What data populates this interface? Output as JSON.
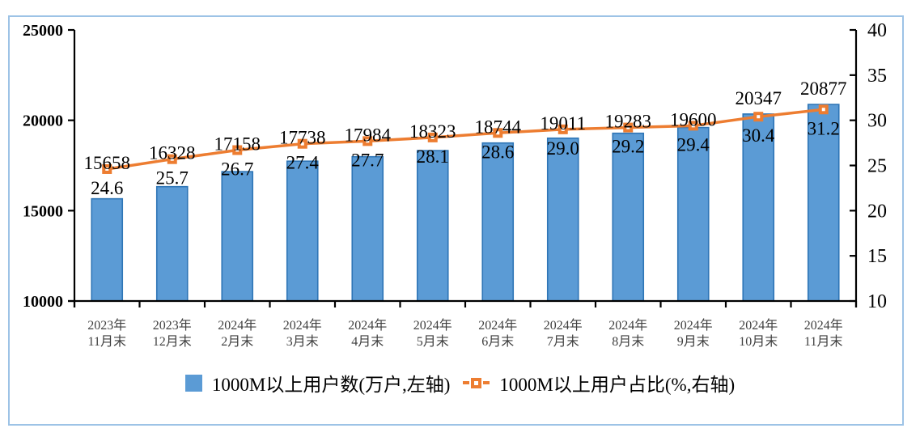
{
  "chart_data": {
    "type": "bar+line combo",
    "title": "",
    "categories": [
      "2023年11月末",
      "2023年12月末",
      "2024年2月末",
      "2024年3月末",
      "2024年4月末",
      "2024年5月末",
      "2024年6月末",
      "2024年7月末",
      "2024年8月末",
      "2024年9月末",
      "2024年10月末",
      "2024年11月末"
    ],
    "series": [
      {
        "name": "1000M以上用户数(万户,左轴)",
        "type": "bar",
        "axis": "left",
        "values": [
          15658,
          16328,
          17158,
          17738,
          17984,
          18323,
          18744,
          19011,
          19283,
          19600,
          20347,
          20877
        ],
        "labels": [
          "15658",
          "16328",
          "17158",
          "17738",
          "17984",
          "18323",
          "18744",
          "19011",
          "19283",
          "19600",
          "20347",
          "20877"
        ],
        "fill": "#5B9BD5",
        "stroke": "#2E75B6"
      },
      {
        "name": "1000M以上用户占比(%,右轴)",
        "type": "line",
        "axis": "right",
        "values": [
          24.6,
          25.7,
          26.7,
          27.4,
          27.7,
          28.1,
          28.6,
          29.0,
          29.2,
          29.4,
          30.4,
          31.2
        ],
        "labels": [
          "24.6",
          "25.7",
          "26.7",
          "27.4",
          "27.7",
          "28.1",
          "28.6",
          "29.0",
          "29.2",
          "29.4",
          "30.4",
          "31.2"
        ],
        "color": "#ED7D31",
        "marker_core": "#FFFFFF"
      }
    ],
    "left_axis": {
      "min": 10000,
      "max": 25000,
      "ticks": [
        25000,
        20000,
        15000,
        10000
      ]
    },
    "right_axis": {
      "min": 10,
      "max": 40,
      "ticks": [
        40,
        35,
        30,
        25,
        20,
        15,
        10
      ]
    },
    "grid": false,
    "legend_position": "bottom",
    "axis_color": "#000000",
    "label_color": "#000000",
    "xlabel_color": "#404040",
    "frame_border_color": "#9DC3E6"
  }
}
